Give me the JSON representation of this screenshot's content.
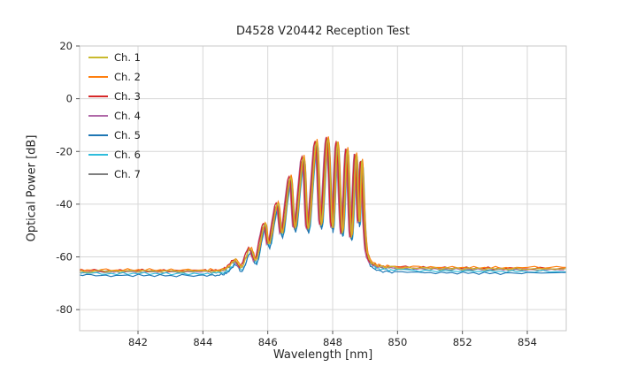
{
  "chart_data": {
    "type": "line",
    "title": "D4528 V20442 Reception Test",
    "xlabel": "Wavelength [nm]",
    "ylabel": "Optical Power [dB]",
    "xlim": [
      840.2,
      855.2
    ],
    "ylim": [
      -88,
      20
    ],
    "xticks": [
      842,
      844,
      846,
      848,
      850,
      852,
      854
    ],
    "yticks": [
      20,
      0,
      -20,
      -40,
      -60,
      -80
    ],
    "grid": true,
    "legend_position": "upper-left",
    "grid_color": "#d7d7d7",
    "frame_color": "#c9c9c9",
    "x": [
      840.2,
      841.0,
      842.0,
      843.0,
      844.0,
      844.5,
      844.75,
      845.0,
      845.2,
      845.45,
      845.65,
      845.9,
      846.05,
      846.3,
      846.45,
      846.7,
      846.85,
      847.1,
      847.25,
      847.5,
      847.65,
      847.85,
      848.0,
      848.15,
      848.3,
      848.45,
      848.58,
      848.72,
      848.82,
      848.9,
      849.0,
      849.1,
      849.3,
      849.6,
      850.0,
      851.0,
      852.0,
      853.0,
      854.0,
      855.2
    ],
    "base_db": [
      -65.3,
      -65.4,
      -65.3,
      -65.4,
      -65.3,
      -65.2,
      -64.2,
      -61.3,
      -63.8,
      -56.8,
      -61.0,
      -47.5,
      -55.0,
      -39.6,
      -51.0,
      -29.5,
      -49.0,
      -22.0,
      -49.5,
      -16.0,
      -48.0,
      -14.6,
      -49.0,
      -16.5,
      -51.0,
      -19.0,
      -52.5,
      -21.0,
      -47.0,
      -23.5,
      -50.0,
      -60.0,
      -63.0,
      -63.8,
      -64.0,
      -64.3,
      -64.4,
      -64.5,
      -64.5,
      -64.4
    ],
    "series": [
      {
        "name": "Ch. 1",
        "color": "#c9ba2e",
        "offset_db": 0.0,
        "x_shift": 0.0
      },
      {
        "name": "Ch. 2",
        "color": "#ff7f0e",
        "offset_db": 0.4,
        "x_shift": 0.02
      },
      {
        "name": "Ch. 3",
        "color": "#d62728",
        "offset_db": 0.2,
        "x_shift": -0.04
      },
      {
        "name": "Ch. 4",
        "color": "#b069a8",
        "offset_db": -0.1,
        "x_shift": -0.06
      },
      {
        "name": "Ch. 5",
        "color": "#1f77b4",
        "offset_db": -1.7,
        "x_shift": 0.01
      },
      {
        "name": "Ch. 6",
        "color": "#2fbddc",
        "offset_db": -1.0,
        "x_shift": 0.03
      },
      {
        "name": "Ch. 7",
        "color": "#7f7f7f",
        "offset_db": -0.4,
        "x_shift": -0.02
      }
    ]
  }
}
